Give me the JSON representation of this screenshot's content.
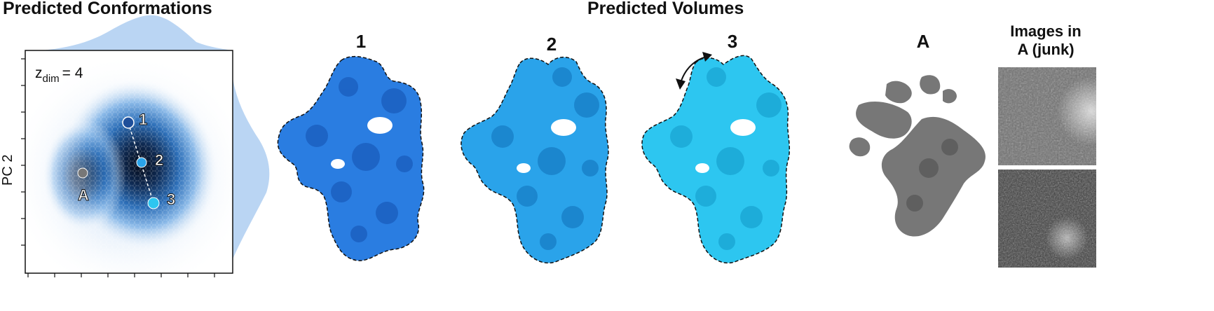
{
  "headings": {
    "left": "Predicted Conformations",
    "center": "Predicted Volumes"
  },
  "plot": {
    "ylabel": "PC 2",
    "zdim_base": "z",
    "zdim_sub": "dim",
    "zdim_value": "= 4",
    "points": [
      "1",
      "2",
      "3",
      "A"
    ]
  },
  "volumes": [
    "1",
    "2",
    "3",
    "A"
  ],
  "images_panel": {
    "line1": "Images in",
    "line2": "A (junk)"
  },
  "colors": {
    "vol1": "#2a7de1",
    "vol2": "#2aa3ea",
    "vol3": "#2dc6f0",
    "volA": "#777777"
  }
}
